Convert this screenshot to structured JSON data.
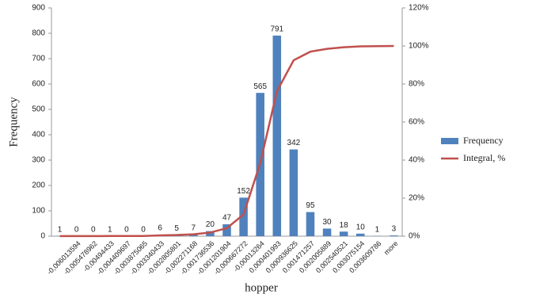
{
  "chart_data": {
    "type": "bar",
    "x_label": "hopper",
    "y_label": "Frequency",
    "categories": [
      null,
      "-0,006013594",
      "-0,005478962",
      "-0,00494433",
      "-0,004409697",
      "-0,003875065",
      "-0,003340433",
      "-0,002805801",
      "-0,002271168",
      "-0,001736536",
      "-0,001201904",
      "-0,000667272",
      "-0,00013264",
      "0,000401993",
      "0,000936625",
      "0,001471257",
      "0,002005889",
      "0,002540521",
      "0,003075154",
      "0,003609786",
      "more"
    ],
    "series": [
      {
        "name": "Frequency",
        "color": "#4f81bd",
        "values": [
          1,
          0,
          0,
          1,
          0,
          0,
          6,
          5,
          7,
          20,
          47,
          152,
          565,
          791,
          342,
          95,
          30,
          18,
          10,
          1,
          3
        ]
      },
      {
        "name": "Integral, %",
        "color": "#c0504d",
        "axis": "y2",
        "type": "line",
        "values": [
          0.05,
          0.05,
          0.05,
          0.1,
          0.1,
          0.1,
          0.4,
          0.6,
          1,
          1.9,
          4.2,
          11.4,
          38.4,
          76.2,
          92.5,
          97,
          98.5,
          99.3,
          99.8,
          99.9,
          100
        ]
      }
    ],
    "ylim": [
      0,
      900
    ],
    "yticks": [
      0,
      100,
      200,
      300,
      400,
      500,
      600,
      700,
      800,
      900
    ],
    "y2lim": [
      0,
      120
    ],
    "y2ticks": [
      {
        "value": 0,
        "label": "0%"
      },
      {
        "value": 20,
        "label": "20%"
      },
      {
        "value": 40,
        "label": "40%"
      },
      {
        "value": 60,
        "label": "60%"
      },
      {
        "value": 80,
        "label": "80%"
      },
      {
        "value": 100,
        "label": "100%"
      },
      {
        "value": 120,
        "label": "120%"
      }
    ],
    "legend": "right"
  }
}
